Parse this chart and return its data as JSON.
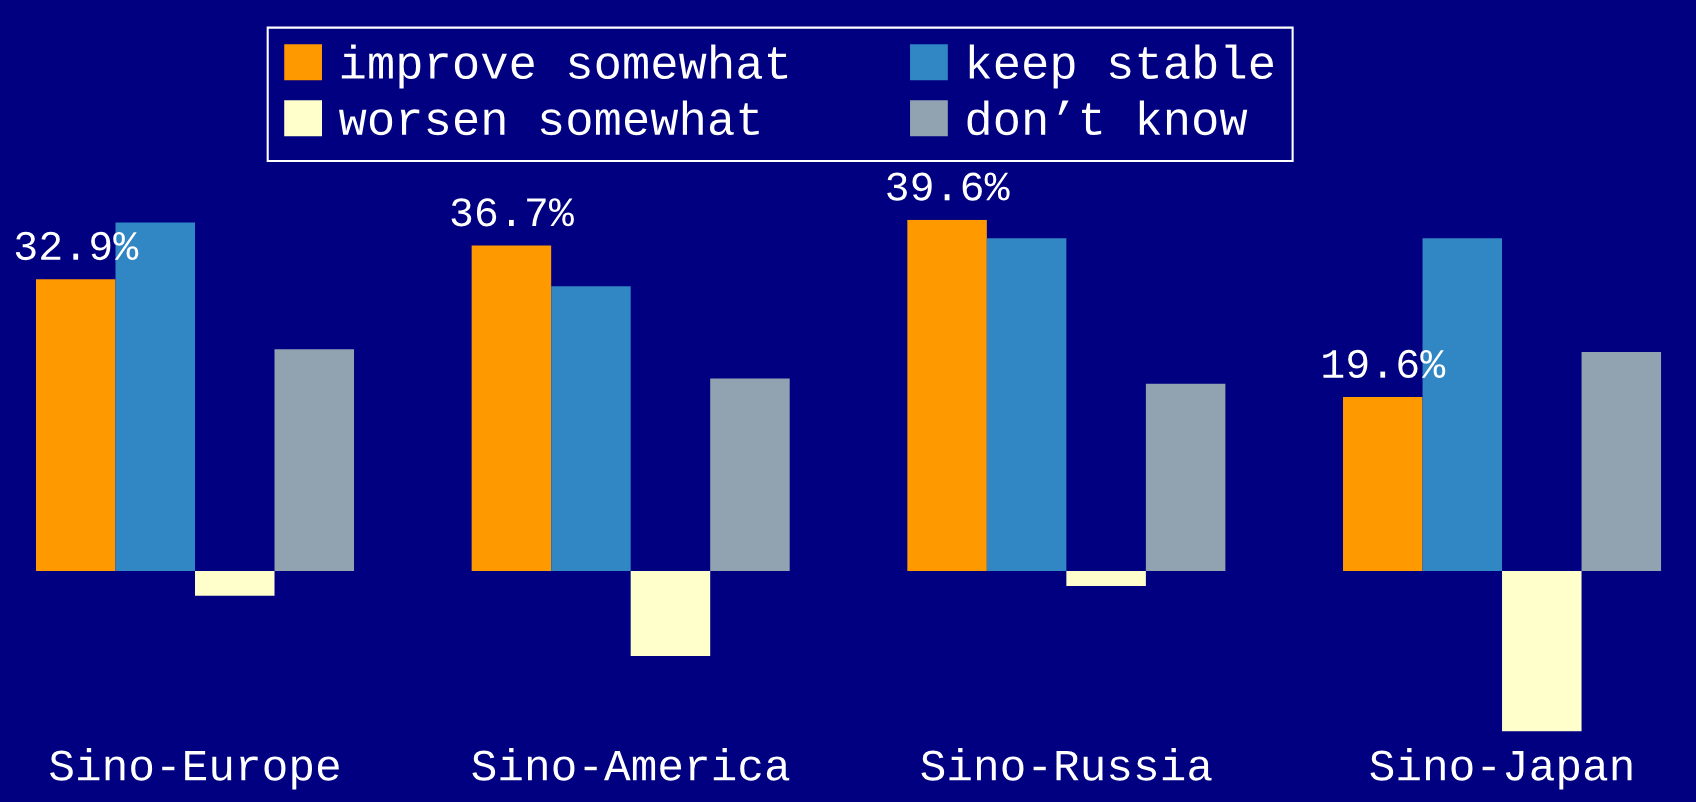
{
  "chart_data": {
    "type": "bar",
    "categories": [
      "Sino-Europe",
      "Sino-America",
      "Sino-Russia",
      "Sino-Japan"
    ],
    "series": [
      {
        "name": "improve somewhat",
        "color": "#ff9900",
        "values": [
          32.9,
          36.7,
          39.6,
          19.6
        ],
        "value_labels": [
          "32.9%",
          "36.7%",
          "39.6%",
          "19.6%"
        ]
      },
      {
        "name": "keep stable",
        "color": "#3186c4",
        "values": [
          39.3,
          32.1,
          37.5,
          37.5
        ]
      },
      {
        "name": "worsen somewhat",
        "color": "#ffffcc",
        "values": [
          -2.8,
          -9.6,
          -1.7,
          -18.1
        ]
      },
      {
        "name": "don’t know",
        "color": "#91a3b0",
        "values": [
          25.0,
          21.7,
          21.1,
          24.7
        ]
      }
    ],
    "legend": "top",
    "grid": false,
    "tick_labels": "x"
  }
}
